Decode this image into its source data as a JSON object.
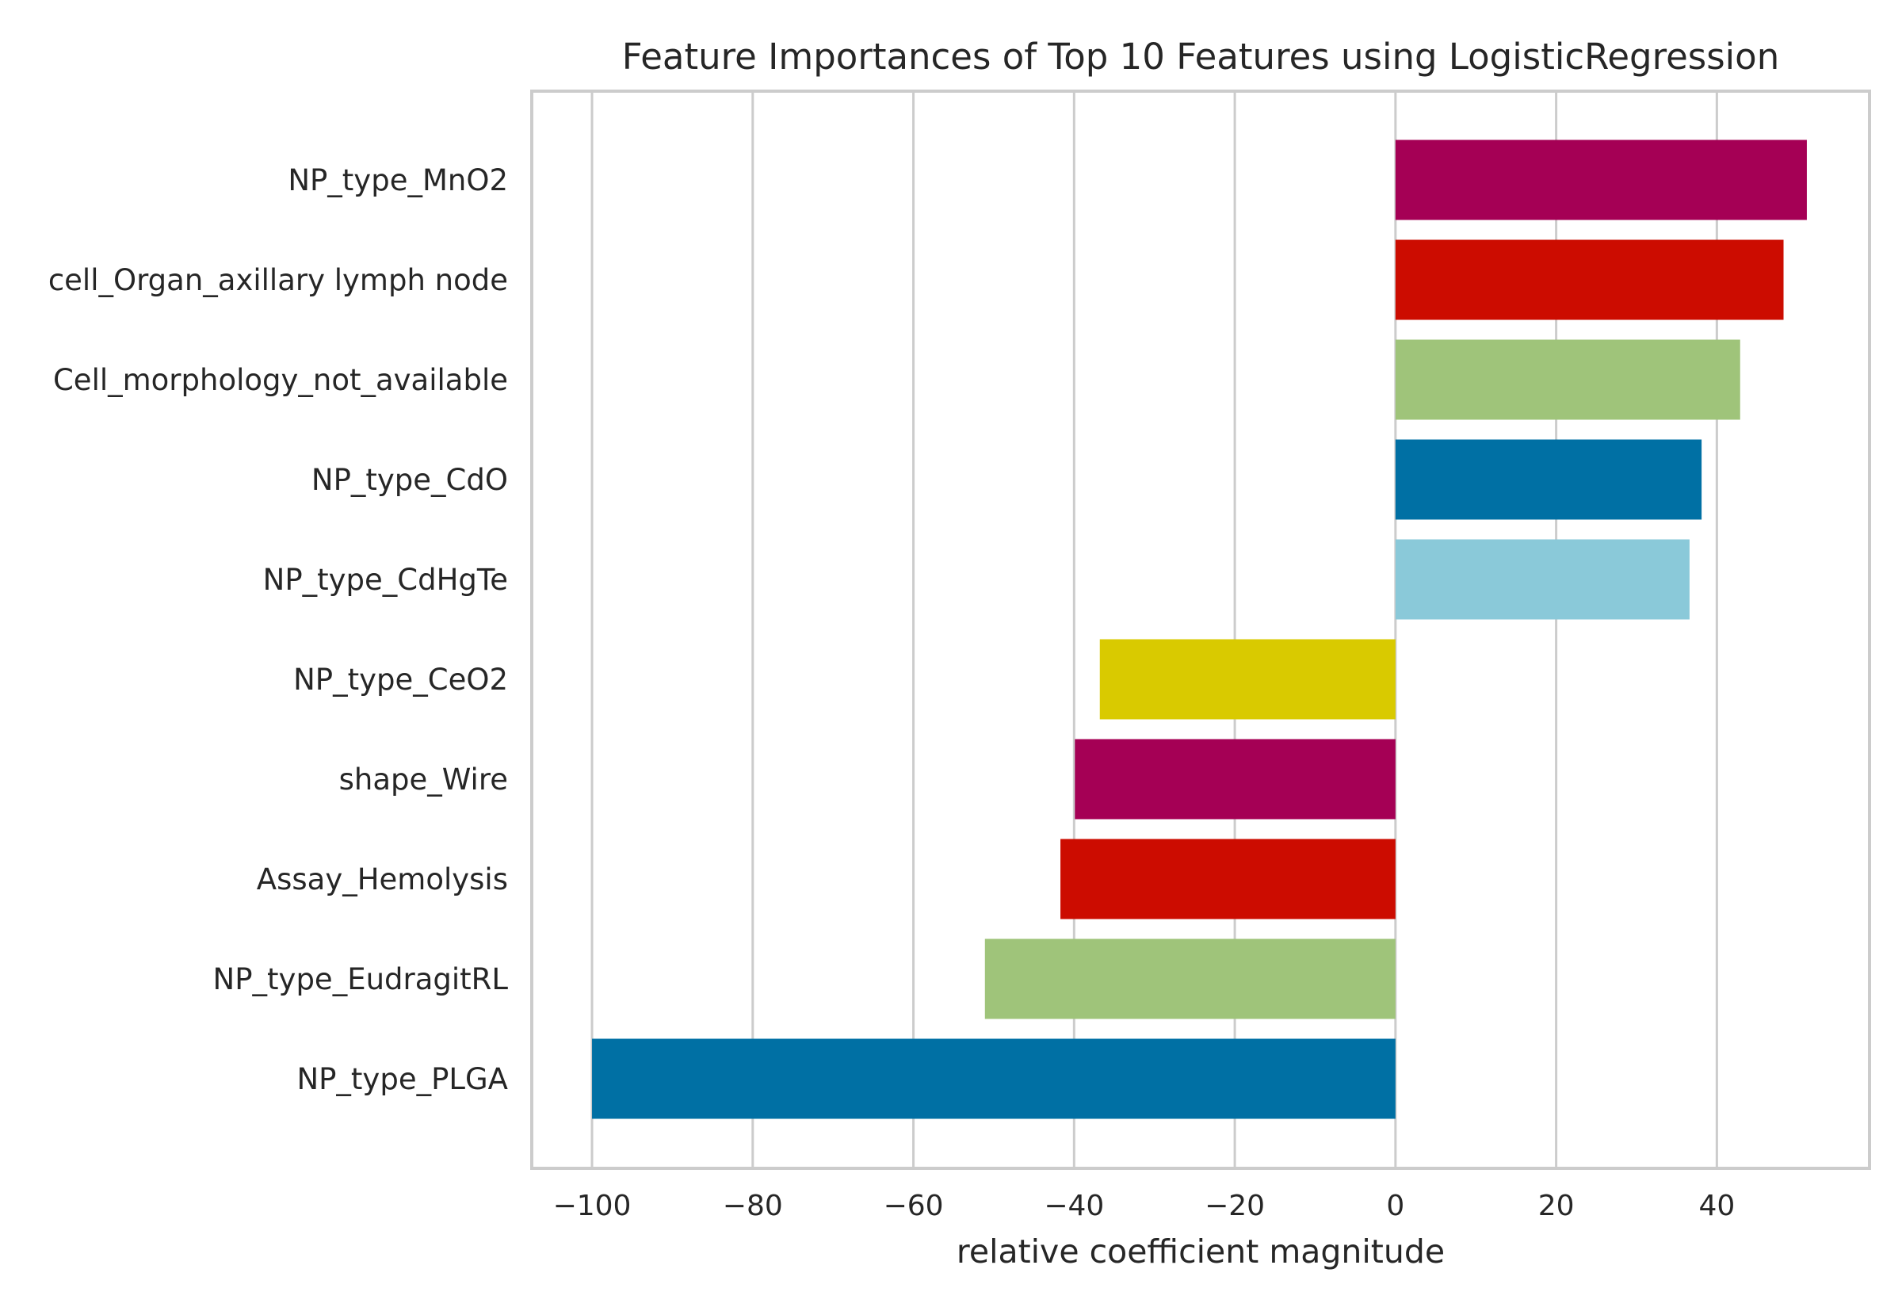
{
  "chart_data": {
    "type": "bar",
    "orientation": "horizontal",
    "title": "Feature Importances of Top 10 Features using LogisticRegression",
    "xlabel": "relative coefficient magnitude",
    "ylabel": "",
    "xlim": [
      -107.5,
      59
    ],
    "xticks": [
      "−100",
      "−80",
      "−60",
      "−40",
      "−20",
      "0",
      "20",
      "40"
    ],
    "grid": true,
    "categories": [
      "NP_type_MnO2",
      "cell_Organ_axillary lymph node",
      "Cell_morphology_not_available",
      "NP_type_CdO",
      "NP_type_CdHgTe",
      "NP_type_CeO2",
      "shape_Wire",
      "Assay_Hemolysis",
      "NP_type_EudragitRL",
      "NP_type_PLGA"
    ],
    "values": [
      51.2,
      48.3,
      42.9,
      38.1,
      36.6,
      -36.8,
      -39.9,
      -41.7,
      -51.1,
      -100
    ],
    "colors": [
      "#a50055",
      "#cc0c00",
      "#9fc47a",
      "#0070a4",
      "#8ac9d9",
      "#d9ca00",
      "#a50055",
      "#cc0c00",
      "#9fc47a",
      "#0070a4"
    ]
  }
}
